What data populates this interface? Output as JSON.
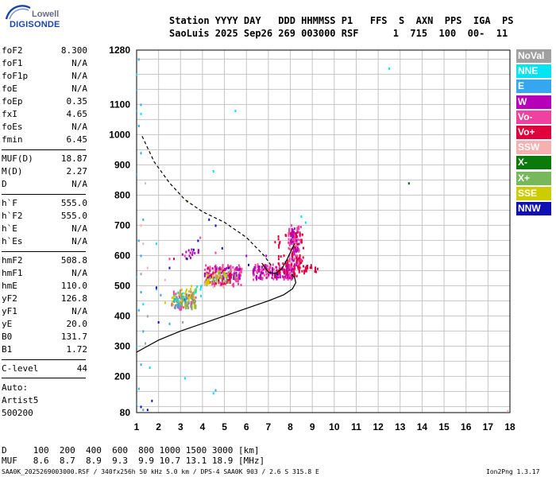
{
  "logo": {
    "top": "Lowell",
    "bottom": "DIGISONDE"
  },
  "header": {
    "line1": "Station YYYY DAY   DDD HHMMSS P1   FFS  S  AXN  PPS  IGA  PS",
    "line2": "SaoLuis 2025 Sep26 269 003000 RSF      1  715  100  00-  11"
  },
  "params_group1": [
    {
      "key": "foF2",
      "value": "8.300"
    },
    {
      "key": "foF1",
      "value": "N/A"
    },
    {
      "key": "foF1p",
      "value": "N/A"
    },
    {
      "key": "foE",
      "value": "N/A"
    },
    {
      "key": "foEp",
      "value": "0.35"
    },
    {
      "key": "fxI",
      "value": "4.65"
    },
    {
      "key": "foEs",
      "value": "N/A"
    },
    {
      "key": "fmin",
      "value": "6.45"
    }
  ],
  "params_group2": [
    {
      "key": "MUF(D)",
      "value": "18.87"
    },
    {
      "key": "M(D)",
      "value": "2.27"
    },
    {
      "key": "D",
      "value": "N/A"
    }
  ],
  "params_group3": [
    {
      "key": "h`F",
      "value": "555.0"
    },
    {
      "key": "h`F2",
      "value": "555.0"
    },
    {
      "key": "h`E",
      "value": "N/A"
    },
    {
      "key": "h`Es",
      "value": "N/A"
    }
  ],
  "params_group4": [
    {
      "key": "hmF2",
      "value": "508.8"
    },
    {
      "key": "hmF1",
      "value": "N/A"
    },
    {
      "key": "hmE",
      "value": "110.0"
    },
    {
      "key": "yF2",
      "value": "126.8"
    },
    {
      "key": "yF1",
      "value": "N/A"
    },
    {
      "key": "yE",
      "value": "20.0"
    },
    {
      "key": "B0",
      "value": "131.7"
    },
    {
      "key": "B1",
      "value": "1.72"
    }
  ],
  "params_group5": [
    {
      "key": "C-level",
      "value": "44"
    }
  ],
  "autoscale": {
    "line1": "Auto:",
    "line2": "Artist5",
    "line3": "500200"
  },
  "legend": [
    {
      "label": "NoVal",
      "color": "#a0a0a0"
    },
    {
      "label": "NNE",
      "color": "#00e4f4"
    },
    {
      "label": "E",
      "color": "#35a7f0"
    },
    {
      "label": "W",
      "color": "#b800b8"
    },
    {
      "label": "Vo-",
      "color": "#f040a0"
    },
    {
      "label": "Vo+",
      "color": "#e0003c"
    },
    {
      "label": "SSW",
      "color": "#f6b0b0"
    },
    {
      "label": "X-",
      "color": "#0a7a0a"
    },
    {
      "label": "X+",
      "color": "#77b85a"
    },
    {
      "label": "SSE",
      "color": "#cccc00"
    },
    {
      "label": "NNW",
      "color": "#1010b0"
    }
  ],
  "footer": {
    "d_row": "D     100  200  400  600  800 1000 1500 3000 [km]",
    "muf_row": "MUF   8.6  8.7  8.9  9.3  9.9 10.7 13.1 18.9 [MHz]",
    "file_line": "SAA0K_2025269003000.RSF / 340fx256h 50 kHz 5.0 km / DPS-4 SAA0K 903 / 2.6 S 315.8 E",
    "version": "Ion2Png 1.3.17"
  },
  "chart_data": {
    "type": "scatter",
    "xlim": [
      1,
      18
    ],
    "ylim": [
      80,
      1280
    ],
    "grid": true,
    "x_tick_labels": [
      "1",
      "2",
      "3",
      "4",
      "5",
      "6",
      "7",
      "8",
      "9",
      "10",
      "11",
      "12",
      "13",
      "14",
      "15",
      "16",
      "17",
      "18"
    ],
    "y_tick_labels": [
      "80",
      "200",
      "300",
      "400",
      "500",
      "600",
      "700",
      "800",
      "900",
      "1000",
      "1100",
      "1280"
    ],
    "series": [
      {
        "legend_ref": "Vo-",
        "clusters": [
          {
            "x": [
              2.6,
              3.7
            ],
            "y": [
              420,
              480
            ],
            "n": 60
          },
          {
            "x": [
              4.1,
              5.8
            ],
            "y": [
              500,
              570
            ],
            "n": 100
          },
          {
            "x": [
              6.3,
              8.2
            ],
            "y": [
              520,
              570
            ],
            "n": 90
          },
          {
            "x": [
              7.9,
              8.5
            ],
            "y": [
              560,
              700
            ],
            "n": 70
          }
        ],
        "points": [
          [
            3.9,
            660
          ],
          [
            4.6,
            610
          ],
          [
            2.5,
            590
          ],
          [
            3.2,
            600
          ]
        ]
      },
      {
        "legend_ref": "W",
        "clusters": [
          {
            "x": [
              4.1,
              5.8
            ],
            "y": [
              510,
              560
            ],
            "n": 60
          },
          {
            "x": [
              6.3,
              8.2
            ],
            "y": [
              525,
              565
            ],
            "n": 60
          },
          {
            "x": [
              8.0,
              8.4
            ],
            "y": [
              570,
              690
            ],
            "n": 35
          },
          {
            "x": [
              3.0,
              4.0
            ],
            "y": [
              590,
              620
            ],
            "n": 14
          }
        ],
        "points": [
          [
            6.0,
            600
          ],
          [
            6.9,
            600
          ]
        ]
      },
      {
        "legend_ref": "Vo+",
        "clusters": [
          {
            "x": [
              7.3,
              8.6
            ],
            "y": [
              530,
              680
            ],
            "n": 55
          },
          {
            "x": [
              8.3,
              9.3
            ],
            "y": [
              545,
              565
            ],
            "n": 20
          },
          {
            "x": [
              4.2,
              5.3
            ],
            "y": [
              505,
              560
            ],
            "n": 25
          }
        ],
        "points": [
          [
            2.7,
            590
          ],
          [
            3.4,
            470
          ]
        ]
      },
      {
        "legend_ref": "SSE",
        "clusters": [
          {
            "x": [
              2.6,
              3.8
            ],
            "y": [
              430,
              490
            ],
            "n": 45
          },
          {
            "x": [
              4.1,
              5.2
            ],
            "y": [
              500,
              545
            ],
            "n": 28
          }
        ],
        "points": [
          [
            3.5,
            500
          ],
          [
            2.3,
            445
          ]
        ]
      },
      {
        "legend_ref": "X+",
        "clusters": [
          {
            "x": [
              2.7,
              3.8
            ],
            "y": [
              425,
              470
            ],
            "n": 25
          },
          {
            "x": [
              4.3,
              5.5
            ],
            "y": [
              510,
              550
            ],
            "n": 15
          }
        ],
        "points": [
          [
            3.3,
            780
          ],
          [
            13.4,
            840
          ]
        ]
      },
      {
        "legend_ref": "X-",
        "clusters": [],
        "points": [
          [
            13.4,
            840
          ],
          [
            3.2,
            455
          ]
        ]
      },
      {
        "legend_ref": "NNE",
        "clusters": [
          {
            "x": [
              2.8,
              4.3
            ],
            "y": [
              450,
              500
            ],
            "n": 12
          }
        ],
        "points": [
          [
            1.0,
            1200
          ],
          [
            1.2,
            1070
          ],
          [
            4.5,
            880
          ],
          [
            5.5,
            1080
          ],
          [
            12.5,
            1220
          ],
          [
            1.9,
            640
          ],
          [
            1.3,
            440
          ],
          [
            1.6,
            230
          ],
          [
            3.2,
            195
          ],
          [
            4.5,
            145
          ],
          [
            8.5,
            730
          ],
          [
            8.7,
            710
          ]
        ]
      },
      {
        "legend_ref": "E",
        "clusters": [
          {
            "x": [
              2.6,
              3.5
            ],
            "y": [
              430,
              460
            ],
            "n": 10
          }
        ],
        "points": [
          [
            1.1,
            1250
          ],
          [
            1.0,
            1150
          ],
          [
            1.2,
            1100
          ],
          [
            1.0,
            1080
          ],
          [
            1.1,
            1030
          ],
          [
            1.2,
            940
          ],
          [
            1.0,
            870
          ],
          [
            1.3,
            720
          ],
          [
            1.1,
            650
          ],
          [
            1.2,
            600
          ],
          [
            1.0,
            530
          ],
          [
            1.2,
            480
          ],
          [
            1.1,
            420
          ],
          [
            1.3,
            350
          ],
          [
            1.0,
            300
          ],
          [
            1.2,
            240
          ],
          [
            1.1,
            160
          ],
          [
            1.0,
            110
          ],
          [
            1.3,
            90
          ],
          [
            2.1,
            470
          ],
          [
            2.5,
            375
          ],
          [
            4.6,
            155
          ],
          [
            1.9,
            490
          ]
        ]
      },
      {
        "legend_ref": "NNW",
        "clusters": [],
        "points": [
          [
            4.3,
            720
          ],
          [
            4.6,
            700
          ],
          [
            3.3,
            590
          ],
          [
            2.5,
            560
          ],
          [
            3.6,
            620
          ],
          [
            5.2,
            560
          ],
          [
            6.1,
            570
          ],
          [
            7.4,
            540
          ],
          [
            1.9,
            495
          ],
          [
            2.0,
            380
          ],
          [
            1.5,
            90
          ],
          [
            1.2,
            100
          ],
          [
            1.7,
            120
          ],
          [
            3.8,
            650
          ],
          [
            4.9,
            625
          ]
        ]
      },
      {
        "legend_ref": "SSW",
        "clusters": [
          {
            "x": [
              4.0,
              5.5
            ],
            "y": [
              490,
              560
            ],
            "n": 10
          }
        ],
        "points": [
          [
            1.4,
            840
          ],
          [
            1.2,
            700
          ],
          [
            1.3,
            640
          ],
          [
            17.9,
            86
          ],
          [
            2.3,
            520
          ],
          [
            1.5,
            560
          ]
        ]
      },
      {
        "legend_ref": "NoVal",
        "clusters": [],
        "points": [
          [
            1.2,
            540
          ],
          [
            1.5,
            400
          ],
          [
            3.1,
            380
          ],
          [
            1.4,
            310
          ]
        ]
      }
    ],
    "curves": [
      {
        "style": "dashed",
        "x": [
          1.25,
          1.8,
          2.5,
          3.2,
          4.0,
          5.0,
          6.0,
          6.8,
          7.2
        ],
        "y": [
          995,
          910,
          840,
          785,
          745,
          710,
          660,
          600,
          560
        ]
      },
      {
        "style": "solid",
        "x": [
          1.0,
          1.5,
          2.0,
          3.0,
          4.0,
          5.0,
          6.0,
          7.0,
          7.7,
          8.1,
          8.25,
          8.2,
          8.05
        ],
        "y": [
          280,
          300,
          320,
          350,
          375,
          400,
          425,
          450,
          470,
          490,
          510,
          525,
          540
        ]
      },
      {
        "style": "solid",
        "x": [
          6.7,
          7.0,
          7.3,
          7.6,
          7.8,
          8.0,
          8.2
        ],
        "y": [
          575,
          545,
          540,
          555,
          580,
          610,
          640
        ]
      }
    ]
  }
}
